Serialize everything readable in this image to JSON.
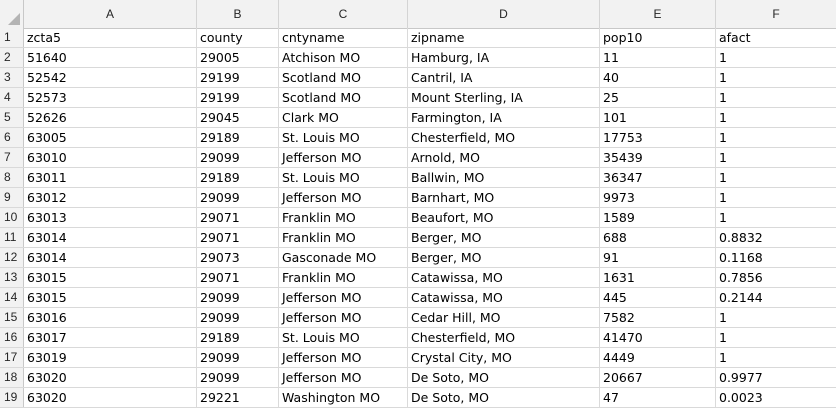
{
  "columns": [
    "A",
    "B",
    "C",
    "D",
    "E",
    "F"
  ],
  "rows": [
    {
      "num": "1",
      "cells": [
        "zcta5",
        "county",
        "cntyname",
        "zipname",
        "pop10",
        "afact"
      ]
    },
    {
      "num": "2",
      "cells": [
        "51640",
        "29005",
        "Atchison MO",
        "Hamburg, IA",
        "11",
        "1"
      ]
    },
    {
      "num": "3",
      "cells": [
        "52542",
        "29199",
        "Scotland MO",
        "Cantril, IA",
        "40",
        "1"
      ]
    },
    {
      "num": "4",
      "cells": [
        "52573",
        "29199",
        "Scotland MO",
        "Mount Sterling, IA",
        "25",
        "1"
      ]
    },
    {
      "num": "5",
      "cells": [
        "52626",
        "29045",
        "Clark MO",
        "Farmington, IA",
        "101",
        "1"
      ]
    },
    {
      "num": "6",
      "cells": [
        "63005",
        "29189",
        "St. Louis MO",
        "Chesterfield, MO",
        "17753",
        "1"
      ]
    },
    {
      "num": "7",
      "cells": [
        "63010",
        "29099",
        "Jefferson MO",
        "Arnold, MO",
        "35439",
        "1"
      ]
    },
    {
      "num": "8",
      "cells": [
        "63011",
        "29189",
        "St. Louis MO",
        "Ballwin, MO",
        "36347",
        "1"
      ]
    },
    {
      "num": "9",
      "cells": [
        "63012",
        "29099",
        "Jefferson MO",
        "Barnhart, MO",
        "9973",
        "1"
      ]
    },
    {
      "num": "10",
      "cells": [
        "63013",
        "29071",
        "Franklin MO",
        "Beaufort, MO",
        "1589",
        "1"
      ]
    },
    {
      "num": "11",
      "cells": [
        "63014",
        "29071",
        "Franklin MO",
        "Berger, MO",
        "688",
        "0.8832"
      ]
    },
    {
      "num": "12",
      "cells": [
        "63014",
        "29073",
        "Gasconade MO",
        "Berger, MO",
        "91",
        "0.1168"
      ]
    },
    {
      "num": "13",
      "cells": [
        "63015",
        "29071",
        "Franklin MO",
        "Catawissa, MO",
        "1631",
        "0.7856"
      ]
    },
    {
      "num": "14",
      "cells": [
        "63015",
        "29099",
        "Jefferson MO",
        "Catawissa, MO",
        "445",
        "0.2144"
      ]
    },
    {
      "num": "15",
      "cells": [
        "63016",
        "29099",
        "Jefferson MO",
        "Cedar Hill, MO",
        "7582",
        "1"
      ]
    },
    {
      "num": "16",
      "cells": [
        "63017",
        "29189",
        "St. Louis MO",
        "Chesterfield, MO",
        "41470",
        "1"
      ]
    },
    {
      "num": "17",
      "cells": [
        "63019",
        "29099",
        "Jefferson MO",
        "Crystal City, MO",
        "4449",
        "1"
      ]
    },
    {
      "num": "18",
      "cells": [
        "63020",
        "29099",
        "Jefferson MO",
        "De Soto, MO",
        "20667",
        "0.9977"
      ]
    },
    {
      "num": "19",
      "cells": [
        "63020",
        "29221",
        "Washington MO",
        "De Soto, MO",
        "47",
        "0.0023"
      ]
    }
  ]
}
